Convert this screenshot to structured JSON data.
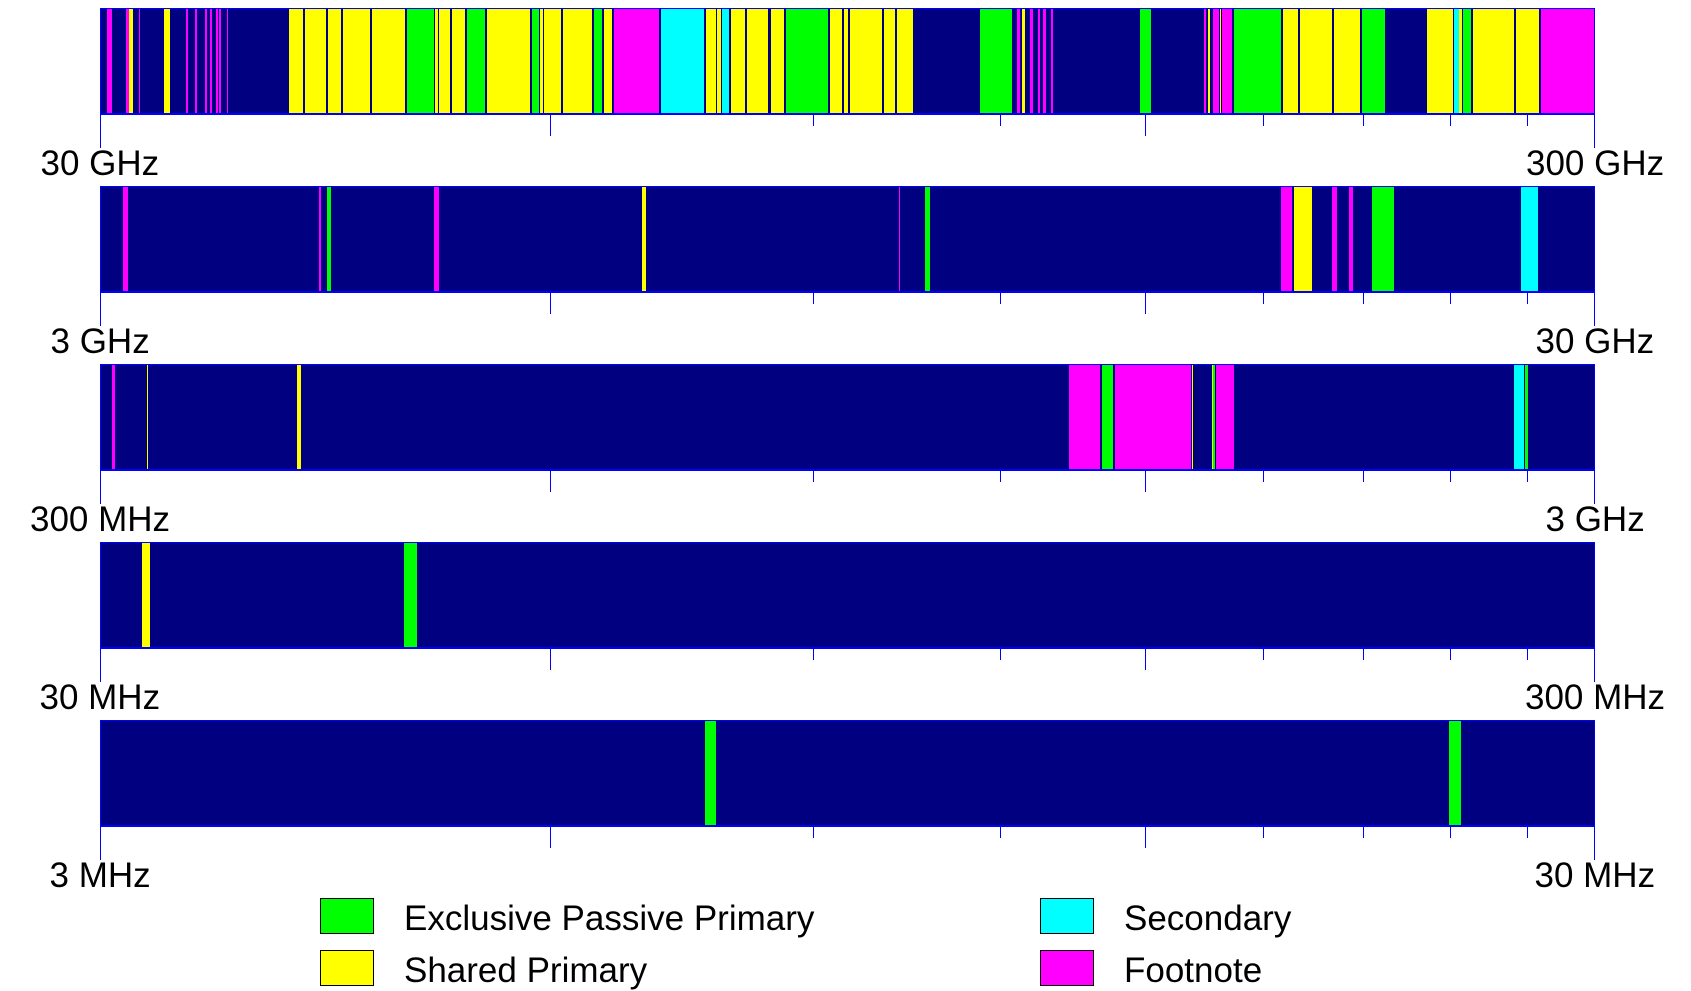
{
  "chart_data": {
    "type": "spectrum-allocation",
    "x_scale": "log",
    "colors": {
      "background": "#000080",
      "exclusive_passive": "#00ff00",
      "shared_primary": "#ffff00",
      "secondary": "#00ffff",
      "footnote": "#ff00ff"
    },
    "legend": [
      {
        "key": "exclusive_passive",
        "label": "Exclusive Passive Primary",
        "color": "#00ff00"
      },
      {
        "key": "secondary",
        "label": "Secondary",
        "color": "#00ffff"
      },
      {
        "key": "shared_primary",
        "label": "Shared Primary",
        "color": "#ffff00"
      },
      {
        "key": "footnote",
        "label": "Footnote",
        "color": "#ff00ff"
      }
    ],
    "bands": [
      {
        "start_label": "30 GHz",
        "end_label": "300 GHz",
        "start_mhz": 30000,
        "end_mhz": 300000,
        "segments": [
          {
            "f1": 30300,
            "f2": 30500,
            "type": "footnote"
          },
          {
            "f1": 31200,
            "f2": 31300,
            "type": "footnote"
          },
          {
            "f1": 31300,
            "f2": 31500,
            "type": "shared_primary"
          },
          {
            "f1": 31800,
            "f2": 31850,
            "type": "footnote"
          },
          {
            "f1": 33000,
            "f2": 33400,
            "type": "shared_primary"
          },
          {
            "f1": 34200,
            "f2": 34300,
            "type": "footnote"
          },
          {
            "f1": 34700,
            "f2": 34800,
            "type": "footnote"
          },
          {
            "f1": 35200,
            "f2": 35300,
            "type": "footnote"
          },
          {
            "f1": 35500,
            "f2": 35600,
            "type": "footnote"
          },
          {
            "f1": 35800,
            "f2": 35900,
            "type": "footnote"
          },
          {
            "f1": 36000,
            "f2": 36100,
            "type": "footnote"
          },
          {
            "f1": 36400,
            "f2": 36500,
            "type": "footnote"
          },
          {
            "f1": 40000,
            "f2": 41000,
            "type": "shared_primary"
          },
          {
            "f1": 41000,
            "f2": 42500,
            "type": "shared_primary"
          },
          {
            "f1": 42500,
            "f2": 43500,
            "type": "shared_primary"
          },
          {
            "f1": 43500,
            "f2": 45500,
            "type": "shared_primary"
          },
          {
            "f1": 45500,
            "f2": 48000,
            "type": "shared_primary"
          },
          {
            "f1": 48000,
            "f2": 50200,
            "type": "exclusive_passive"
          },
          {
            "f1": 50200,
            "f2": 50400,
            "type": "shared_primary"
          },
          {
            "f1": 50400,
            "f2": 51400,
            "type": "shared_primary"
          },
          {
            "f1": 51400,
            "f2": 52600,
            "type": "shared_primary"
          },
          {
            "f1": 52600,
            "f2": 54250,
            "type": "exclusive_passive"
          },
          {
            "f1": 54250,
            "f2": 58200,
            "type": "shared_primary"
          },
          {
            "f1": 58200,
            "f2": 59000,
            "type": "exclusive_passive"
          },
          {
            "f1": 59000,
            "f2": 59300,
            "type": "shared_primary"
          },
          {
            "f1": 59300,
            "f2": 61000,
            "type": "shared_primary"
          },
          {
            "f1": 61000,
            "f2": 64000,
            "type": "shared_primary"
          },
          {
            "f1": 64000,
            "f2": 65000,
            "type": "exclusive_passive"
          },
          {
            "f1": 65000,
            "f2": 66000,
            "type": "shared_primary"
          },
          {
            "f1": 66000,
            "f2": 71000,
            "type": "footnote"
          },
          {
            "f1": 71000,
            "f2": 76000,
            "type": "secondary"
          },
          {
            "f1": 76000,
            "f2": 77500,
            "type": "shared_primary"
          },
          {
            "f1": 77500,
            "f2": 78000,
            "type": "shared_primary"
          },
          {
            "f1": 78000,
            "f2": 79000,
            "type": "secondary"
          },
          {
            "f1": 79000,
            "f2": 81000,
            "type": "shared_primary"
          },
          {
            "f1": 81000,
            "f2": 84000,
            "type": "shared_primary"
          },
          {
            "f1": 84000,
            "f2": 86000,
            "type": "shared_primary"
          },
          {
            "f1": 86000,
            "f2": 92000,
            "type": "exclusive_passive"
          },
          {
            "f1": 92000,
            "f2": 94000,
            "type": "shared_primary"
          },
          {
            "f1": 94000,
            "f2": 94100,
            "type": "shared_primary"
          },
          {
            "f1": 94100,
            "f2": 95000,
            "type": "shared_primary"
          },
          {
            "f1": 95000,
            "f2": 100000,
            "type": "shared_primary"
          },
          {
            "f1": 100000,
            "f2": 102000,
            "type": "shared_primary"
          },
          {
            "f1": 102000,
            "f2": 105000,
            "type": "shared_primary"
          },
          {
            "f1": 116000,
            "f2": 122250,
            "type": "exclusive_passive"
          },
          {
            "f1": 123000,
            "f2": 123500,
            "type": "footnote"
          },
          {
            "f1": 124000,
            "f2": 124500,
            "type": "shared_primary"
          },
          {
            "f1": 125500,
            "f2": 126000,
            "type": "footnote"
          },
          {
            "f1": 127000,
            "f2": 127500,
            "type": "footnote"
          },
          {
            "f1": 128000,
            "f2": 128500,
            "type": "footnote"
          },
          {
            "f1": 129500,
            "f2": 130000,
            "type": "footnote"
          },
          {
            "f1": 148500,
            "f2": 151500,
            "type": "exclusive_passive"
          },
          {
            "f1": 164000,
            "f2": 164500,
            "type": "footnote"
          },
          {
            "f1": 165000,
            "f2": 165500,
            "type": "shared_primary"
          },
          {
            "f1": 166000,
            "f2": 168000,
            "type": "footnote"
          },
          {
            "f1": 168000,
            "f2": 168500,
            "type": "shared_primary"
          },
          {
            "f1": 168500,
            "f2": 171500,
            "type": "footnote"
          },
          {
            "f1": 171500,
            "f2": 185000,
            "type": "exclusive_passive"
          },
          {
            "f1": 185000,
            "f2": 190000,
            "type": "shared_primary"
          },
          {
            "f1": 190000,
            "f2": 200000,
            "type": "shared_primary"
          },
          {
            "f1": 200000,
            "f2": 209000,
            "type": "shared_primary"
          },
          {
            "f1": 209000,
            "f2": 217000,
            "type": "exclusive_passive"
          },
          {
            "f1": 231000,
            "f2": 241000,
            "type": "shared_primary"
          },
          {
            "f1": 241000,
            "f2": 243000,
            "type": "secondary"
          },
          {
            "f1": 243000,
            "f2": 244000,
            "type": "shared_primary"
          },
          {
            "f1": 244000,
            "f2": 248000,
            "type": "exclusive_passive"
          },
          {
            "f1": 248000,
            "f2": 265000,
            "type": "shared_primary"
          },
          {
            "f1": 265000,
            "f2": 275000,
            "type": "shared_primary"
          },
          {
            "f1": 275000,
            "f2": 300000,
            "type": "footnote"
          }
        ]
      },
      {
        "start_label": "3 GHz",
        "end_label": "30 GHz",
        "start_mhz": 3000,
        "end_mhz": 30000,
        "segments": [
          {
            "f1": 3100,
            "f2": 3105,
            "type": "footnote"
          },
          {
            "f1": 3100,
            "f2": 3130,
            "type": "footnote"
          },
          {
            "f1": 4200,
            "f2": 4210,
            "type": "footnote"
          },
          {
            "f1": 4240,
            "f2": 4280,
            "type": "exclusive_passive"
          },
          {
            "f1": 5000,
            "f2": 5060,
            "type": "footnote"
          },
          {
            "f1": 6900,
            "f2": 6950,
            "type": "shared_primary"
          },
          {
            "f1": 10250,
            "f2": 10260,
            "type": "footnote"
          },
          {
            "f1": 10680,
            "f2": 10750,
            "type": "exclusive_passive"
          },
          {
            "f1": 18450,
            "f2": 18800,
            "type": "footnote"
          },
          {
            "f1": 18800,
            "f2": 19400,
            "type": "shared_primary"
          },
          {
            "f1": 19990,
            "f2": 20120,
            "type": "footnote"
          },
          {
            "f1": 20520,
            "f2": 20620,
            "type": "footnote"
          },
          {
            "f1": 21200,
            "f2": 22000,
            "type": "exclusive_passive"
          },
          {
            "f1": 26700,
            "f2": 27500,
            "type": "secondary"
          }
        ]
      },
      {
        "start_label": "300 MHz",
        "end_label": "3 GHz",
        "start_mhz": 300,
        "end_mhz": 3000,
        "segments": [
          {
            "f1": 305,
            "f2": 306.5,
            "type": "footnote"
          },
          {
            "f1": 322,
            "f2": 322.5,
            "type": "shared_primary"
          },
          {
            "f1": 406,
            "f2": 408,
            "type": "shared_primary"
          },
          {
            "f1": 1330,
            "f2": 1400,
            "type": "footnote"
          },
          {
            "f1": 1400,
            "f2": 1427,
            "type": "exclusive_passive"
          },
          {
            "f1": 1427,
            "f2": 1610,
            "type": "footnote"
          },
          {
            "f1": 1610,
            "f2": 1613.8,
            "type": "shared_primary"
          },
          {
            "f1": 1660,
            "f2": 1663,
            "type": "shared_primary"
          },
          {
            "f1": 1663,
            "f2": 1668,
            "type": "exclusive_passive"
          },
          {
            "f1": 1668,
            "f2": 1720,
            "type": "footnote"
          },
          {
            "f1": 2640,
            "f2": 2690,
            "type": "secondary"
          },
          {
            "f1": 2690,
            "f2": 2700,
            "type": "exclusive_passive"
          }
        ]
      },
      {
        "start_label": "30 MHz",
        "end_label": "300 MHz",
        "start_mhz": 30,
        "end_mhz": 300,
        "segments": [
          {
            "f1": 31.9,
            "f2": 32.4,
            "type": "shared_primary"
          },
          {
            "f1": 47.8,
            "f2": 48.9,
            "type": "exclusive_passive"
          }
        ]
      },
      {
        "start_label": "3 MHz",
        "end_label": "30 MHz",
        "start_mhz": 3,
        "end_mhz": 30,
        "segments": [
          {
            "f1": 7.59,
            "f2": 7.75,
            "type": "exclusive_passive"
          },
          {
            "f1": 23.9,
            "f2": 24.4,
            "type": "exclusive_passive"
          }
        ]
      }
    ]
  }
}
